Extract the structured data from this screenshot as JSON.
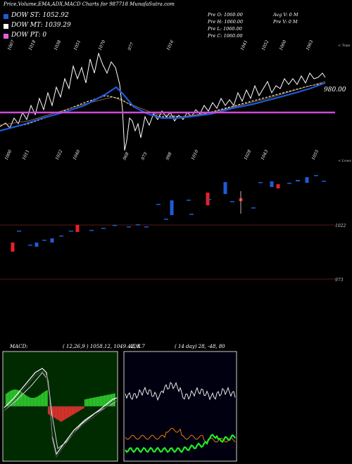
{
  "header": {
    "title": "Price,Volume,EMA,ADX,MACD Charts for 987718 MunafaSutra.com"
  },
  "legend": [
    {
      "label": "DOW ST: 1052.92",
      "color": "#1e5bd6"
    },
    {
      "label": "DOW MT: 1039.29",
      "color": "#ffffff"
    },
    {
      "label": "DOW PT: 0",
      "color": "#e060e0"
    }
  ],
  "stats": {
    "pre_o": "Pre   O: 1060.00",
    "pre_h": "Pre   H: 1060.00",
    "pre_l": "Pre   L: 1060.00",
    "pre_c": "Pre   C: 1060.00",
    "avg_v": "Avg V: 0   M",
    "pre_v": "Pre   V: 0   M"
  },
  "labels": {
    "tops": "< Tops",
    "lows": "< Lows",
    "price_980": "980.00",
    "level_1022": "1022",
    "level_973": "973",
    "macd_title": "MACD:",
    "macd_params": "( 12,26,9 ) 1058.12,  1049.42,  8.7",
    "adx_title": "ADX",
    "adx_params": "( 14  day) 28,  -48,  80"
  },
  "chart_data": {
    "type": "line",
    "top_labels": [
      "1007",
      "1018",
      "1038",
      "1051",
      "1070",
      "977",
      "1016",
      "1041",
      "1052",
      "1060",
      "1063"
    ],
    "low_labels": [
      "1000",
      "1011",
      "1022",
      "1040",
      "968",
      "973",
      "998",
      "1010",
      "1028",
      "1043",
      "1055"
    ],
    "price_ticks": [
      "980.00"
    ],
    "levels": [
      "1022",
      "973"
    ],
    "series": [
      {
        "name": "DOW ST",
        "value": 1052.92
      },
      {
        "name": "DOW MT",
        "value": 1039.29
      },
      {
        "name": "DOW PT",
        "value": 0
      }
    ],
    "macd": [
      1058.12,
      1049.42,
      8.7
    ],
    "adx": [
      28,
      -48,
      80
    ],
    "colors": {
      "price": "#ffffff",
      "short_ema": "#1e5bd6",
      "long_ema": "#e9e9e9",
      "pt": "#d04ad8",
      "up": "#1e5bd6",
      "down": "#e8202a",
      "macd_bar": "#33dd33",
      "macd_neg": "#ff3333",
      "adx_green": "#22ee22",
      "adx_orange": "#ff8a00"
    }
  }
}
